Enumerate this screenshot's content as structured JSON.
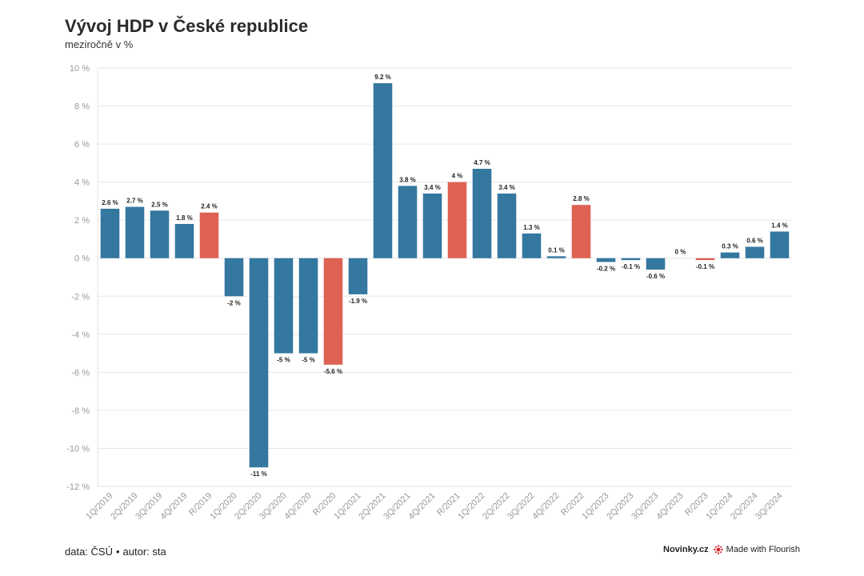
{
  "header": {
    "title": "Vývoj HDP v České republice",
    "subtitle": "meziročně v %"
  },
  "footer": {
    "source_label": "data: ČSÚ",
    "separator": "•",
    "author_label": "autor: sta",
    "brand": "Novinky.cz",
    "flourish_label": "Made with Flourish"
  },
  "colors": {
    "quarter": "#34779f",
    "year": "#dd6253",
    "grid": "#e6e6e6",
    "tick_text": "#999999",
    "label_text": "#222222"
  },
  "chart_data": {
    "type": "bar",
    "title": "Vývoj HDP v České republice",
    "subtitle": "meziročně v %",
    "categories": [
      "1Q/2019",
      "2Q/2019",
      "3Q/2019",
      "4Q/2019",
      "R/2019",
      "1Q/2020",
      "2Q/2020",
      "3Q/2020",
      "4Q/2020",
      "R/2020",
      "1Q/2021",
      "2Q/2021",
      "3Q/2021",
      "4Q/2021",
      "R/2021",
      "1Q/2022",
      "2Q/2022",
      "3Q/2022",
      "4Q/2022",
      "R/2022",
      "1Q/2023",
      "2Q/2023",
      "3Q/2023",
      "4Q/2023",
      "R/2023",
      "1Q/2024",
      "2Q/2024",
      "3Q/2024"
    ],
    "values": [
      2.6,
      2.7,
      2.5,
      1.8,
      2.4,
      -2,
      -11,
      -5,
      -5,
      -5.6,
      -1.9,
      9.2,
      3.8,
      3.4,
      4,
      4.7,
      3.4,
      1.3,
      0.1,
      2.8,
      -0.2,
      -0.1,
      -0.6,
      0,
      -0.1,
      0.3,
      0.6,
      1.4
    ],
    "labels": [
      "2.6 %",
      "2.7 %",
      "2.5 %",
      "1.8 %",
      "2.4 %",
      "-2 %",
      "-11 %",
      "-5 %",
      "-5 %",
      "-5.6 %",
      "-1.9 %",
      "9.2 %",
      "3.8 %",
      "3.4 %",
      "4 %",
      "4.7 %",
      "3.4 %",
      "1.3 %",
      "0.1 %",
      "2.8 %",
      "-0.2 %",
      "-0.1 %",
      "-0.6 %",
      "0 %",
      "-0.1 %",
      "0.3 %",
      "0.6 %",
      "1.4 %"
    ],
    "annual_categories": [
      "R/2019",
      "R/2020",
      "R/2021",
      "R/2022",
      "R/2023"
    ],
    "ylim": [
      -12,
      10
    ],
    "yticks": [
      10,
      8,
      6,
      4,
      2,
      0,
      -2,
      -4,
      -6,
      -8,
      -10,
      -12
    ],
    "ytick_labels": [
      "10 %",
      "8 %",
      "6 %",
      "4 %",
      "2 %",
      "0 %",
      "-2 %",
      "-4 %",
      "-6 %",
      "-8 %",
      "-10 %",
      "-12 %"
    ],
    "grid": true,
    "legend": "none"
  }
}
